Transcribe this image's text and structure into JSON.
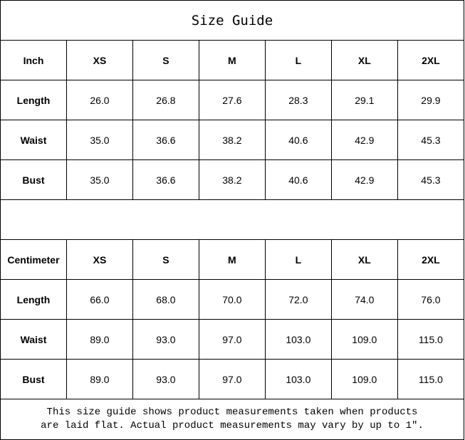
{
  "title": "Size Guide",
  "inch_table": {
    "header": [
      "Inch",
      "XS",
      "S",
      "M",
      "L",
      "XL",
      "2XL"
    ],
    "rows": [
      {
        "label": "Length",
        "values": [
          "26.0",
          "26.8",
          "27.6",
          "28.3",
          "29.1",
          "29.9"
        ]
      },
      {
        "label": "Waist",
        "values": [
          "35.0",
          "36.6",
          "38.2",
          "40.6",
          "42.9",
          "45.3"
        ]
      },
      {
        "label": "Bust",
        "values": [
          "35.0",
          "36.6",
          "38.2",
          "40.6",
          "42.9",
          "45.3"
        ]
      }
    ]
  },
  "cm_table": {
    "header": [
      "Centimeter",
      "XS",
      "S",
      "M",
      "L",
      "XL",
      "2XL"
    ],
    "rows": [
      {
        "label": "Length",
        "values": [
          "66.0",
          "68.0",
          "70.0",
          "72.0",
          "74.0",
          "76.0"
        ]
      },
      {
        "label": "Waist",
        "values": [
          "89.0",
          "93.0",
          "97.0",
          "103.0",
          "109.0",
          "115.0"
        ]
      },
      {
        "label": "Bust",
        "values": [
          "89.0",
          "93.0",
          "97.0",
          "103.0",
          "109.0",
          "115.0"
        ]
      }
    ]
  },
  "note": {
    "line1": "This size guide shows product measurements taken when products",
    "line2": "are laid flat. Actual product measurements may vary by up to 1″."
  }
}
